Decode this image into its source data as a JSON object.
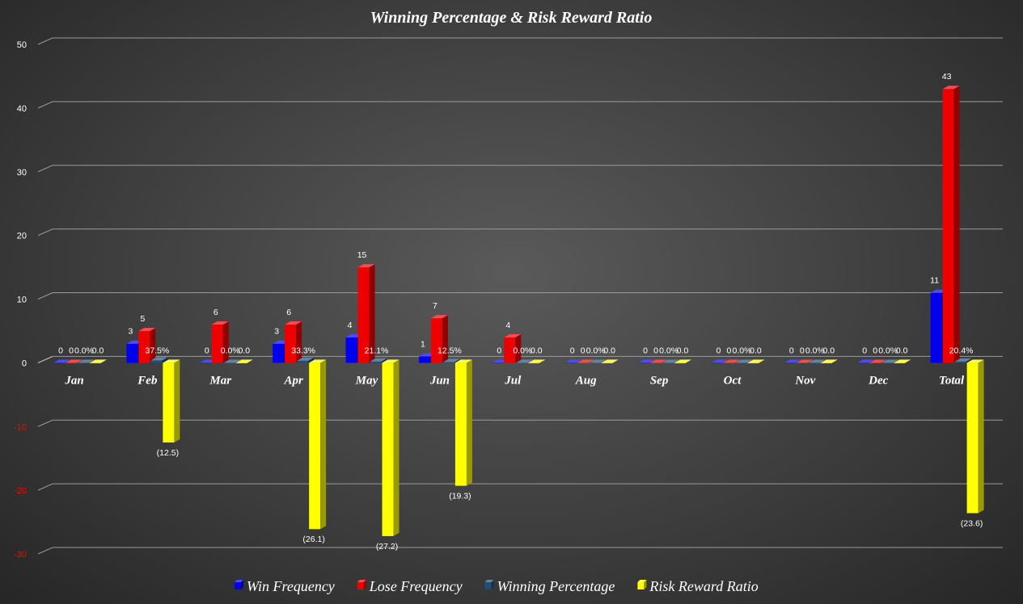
{
  "chart_data": {
    "type": "bar",
    "title": "Winning Percentage & Risk Reward Ratio",
    "categories": [
      "Jan",
      "Feb",
      "Mar",
      "Apr",
      "May",
      "Jun",
      "Jul",
      "Aug",
      "Sep",
      "Oct",
      "Nov",
      "Dec",
      "Total"
    ],
    "ylim": [
      -30,
      50
    ],
    "yticks": [
      -30,
      -20,
      -10,
      0,
      10,
      20,
      30,
      40,
      50
    ],
    "negative_tick_color": "#ff0000",
    "grid": true,
    "legend_position": "bottom",
    "series": [
      {
        "name": "Win Frequency",
        "color": "#0000ee",
        "values": [
          0,
          3,
          0,
          3,
          4,
          1,
          0,
          0,
          0,
          0,
          0,
          0,
          11
        ],
        "labels": [
          "0",
          "3",
          "0",
          "3",
          "4",
          "1",
          "0",
          "0",
          "0",
          "0",
          "0",
          "0",
          "11"
        ]
      },
      {
        "name": "Lose Frequency",
        "color": "#ee0000",
        "values": [
          0,
          5,
          6,
          6,
          15,
          7,
          4,
          0,
          0,
          0,
          0,
          0,
          43
        ],
        "labels": [
          "0",
          "5",
          "6",
          "6",
          "15",
          "7",
          "4",
          "0",
          "0",
          "0",
          "0",
          "0",
          "43"
        ]
      },
      {
        "name": "Winning Percentage",
        "color": "#1f4e79",
        "values": [
          0,
          0.375,
          0,
          0.333,
          0.211,
          0.125,
          0,
          0,
          0,
          0,
          0,
          0,
          0.204
        ],
        "labels": [
          "0.0%",
          "37.5%",
          "0.0%",
          "33.3%",
          "21.1%",
          "12.5%",
          "0.0%",
          "0.0%",
          "0.0%",
          "0.0%",
          "0.0%",
          "0.0%",
          "20.4%"
        ]
      },
      {
        "name": "Risk Reward Ratio",
        "color": "#ffff00",
        "values": [
          0,
          -12.5,
          0,
          -26.1,
          -27.2,
          -19.3,
          0,
          0,
          0,
          0,
          0,
          0,
          -23.6
        ],
        "labels": [
          "0.0",
          "(12.5)",
          "0.0",
          "(26.1)",
          "(27.2)",
          "(19.3)",
          "0.0",
          "0.0",
          "0.0",
          "0.0",
          "0.0",
          "0.0",
          "(23.6)"
        ]
      }
    ]
  }
}
